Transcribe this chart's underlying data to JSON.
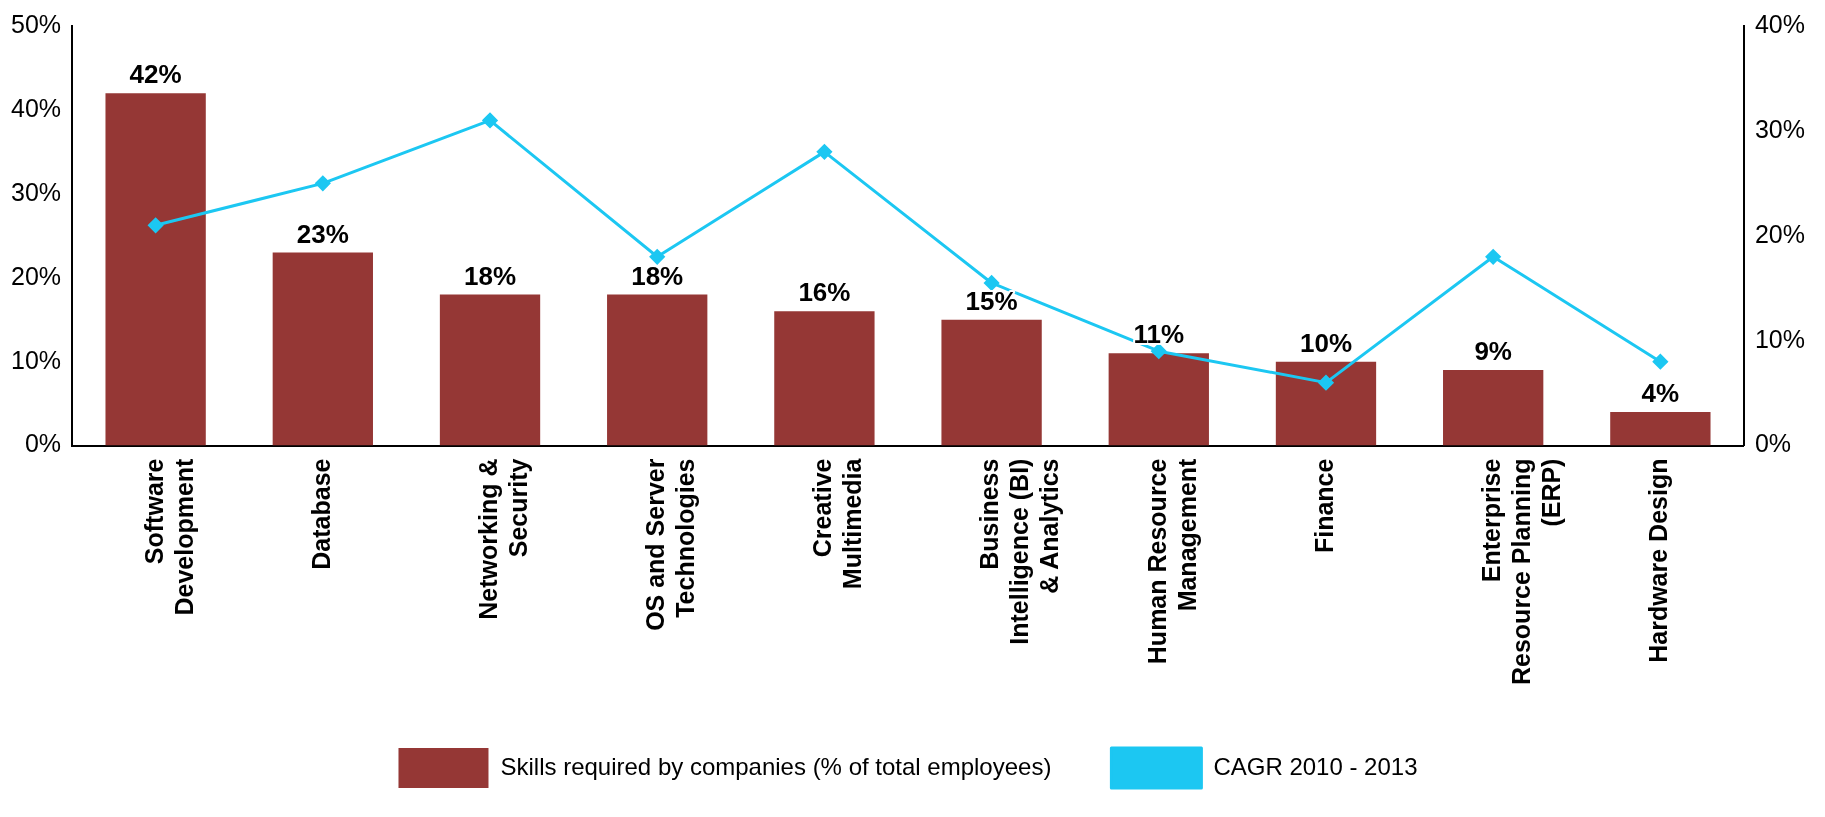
{
  "chart_data": {
    "type": "bar",
    "categories": [
      "Software Development",
      "Database",
      "Networking & Security",
      "OS and Server Technologies",
      "Creative Multimedia",
      "Business Intelligence (BI) & Analytics",
      "Human Resource Management",
      "Finance",
      "Enterprise Resource Planning (ERP)",
      "Hardware Design"
    ],
    "series": [
      {
        "name": "Skills required by companies (% of total employees)",
        "color": "#953735",
        "values": [
          42,
          23,
          18,
          18,
          16,
          15,
          11,
          10,
          9,
          4
        ],
        "value_labels": [
          "42%",
          "23%",
          "18%",
          "18%",
          "16%",
          "15%",
          "11%",
          "10%",
          "9%",
          "4%"
        ]
      },
      {
        "name": "CAGR 2010 - 2013",
        "type": "line",
        "axis": "y2",
        "color": "#1cc7f2",
        "marker": "diamond",
        "values": [
          21,
          25,
          31,
          18,
          28,
          15.5,
          9,
          6,
          18,
          8
        ]
      }
    ],
    "ylim": [
      0,
      50
    ],
    "yticks": [
      {
        "value": 0,
        "label": "0%"
      },
      {
        "value": 10,
        "label": "10%"
      },
      {
        "value": 20,
        "label": "20%"
      },
      {
        "value": 30,
        "label": "30%"
      },
      {
        "value": 40,
        "label": "40%"
      },
      {
        "value": 50,
        "label": "50%"
      }
    ],
    "y2lim": [
      0,
      40
    ],
    "y2ticks": [
      {
        "value": 0,
        "label": "0%"
      },
      {
        "value": 10,
        "label": "10%"
      },
      {
        "value": 20,
        "label": "20%"
      },
      {
        "value": 30,
        "label": "30%"
      },
      {
        "value": 40,
        "label": "40%"
      }
    ],
    "grid": false,
    "legend": "bottom"
  }
}
